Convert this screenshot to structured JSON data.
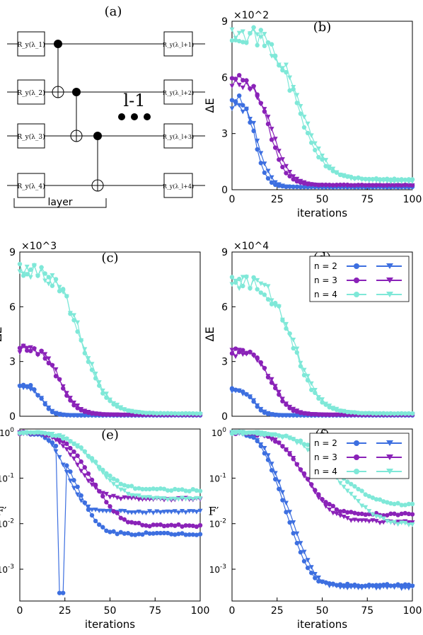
{
  "colors": {
    "n2": "#3d6fe0",
    "n3": "#8a22b8",
    "n4": "#7fe8d8",
    "band2": "#c0392b",
    "band3": "#f2b8c6",
    "band4": "#9a9a9a"
  },
  "circuit": {
    "label": "(a)",
    "gates_left": [
      "R_y(λ_1)",
      "R_y(λ_2)",
      "R_y(λ_3)",
      "R_y(λ_4)"
    ],
    "gates_right": [
      "R_y(λ_l+1)",
      "R_y(λ_l+2)",
      "R_y(λ_l+3)",
      "R_y(λ_l+4)"
    ],
    "repeat_label": "l-1",
    "layer_label": "layer"
  },
  "chart_data": [
    {
      "panel": "(b)",
      "type": "line",
      "multiplier": "×10^2",
      "ylabel": "ΔE",
      "xlabel": "iterations",
      "xlim": [
        0,
        100
      ],
      "ylim": [
        0,
        9
      ],
      "xticks": [
        0,
        25,
        50,
        75,
        100
      ],
      "yticks": [
        0,
        3,
        6,
        9
      ],
      "series": [
        {
          "name": "n = 2",
          "marker": "circle",
          "start": 5.0,
          "floor": 0.15,
          "decay": 11
        },
        {
          "name": "n = 2",
          "marker": "triangle",
          "start": 4.7,
          "floor": 0.12,
          "decay": 13
        },
        {
          "name": "n = 3",
          "marker": "circle",
          "start": 5.9,
          "floor": 0.25,
          "decay": 19
        },
        {
          "name": "n = 3",
          "marker": "triangle",
          "start": 5.7,
          "floor": 0.22,
          "decay": 21
        },
        {
          "name": "n = 4",
          "marker": "circle",
          "start": 8.5,
          "floor": 0.55,
          "decay": 34
        },
        {
          "name": "n = 4",
          "marker": "triangle",
          "start": 8.4,
          "floor": 0.45,
          "decay": 36
        }
      ]
    },
    {
      "panel": "(c)",
      "type": "line",
      "multiplier": "×10^3",
      "ylabel": "ΔE",
      "xlabel": "",
      "xlim": [
        0,
        100
      ],
      "ylim": [
        0,
        9
      ],
      "xticks": [],
      "yticks": [
        0,
        3,
        6,
        9
      ],
      "series": [
        {
          "name": "n = 2",
          "marker": "circle",
          "start": 1.8,
          "floor": 0.05,
          "decay": 10
        },
        {
          "name": "n = 2",
          "marker": "triangle",
          "start": 1.6,
          "floor": 0.05,
          "decay": 11
        },
        {
          "name": "n = 3",
          "marker": "circle",
          "start": 3.8,
          "floor": 0.08,
          "decay": 20
        },
        {
          "name": "n = 3",
          "marker": "triangle",
          "start": 3.7,
          "floor": 0.08,
          "decay": 21
        },
        {
          "name": "n = 4",
          "marker": "circle",
          "start": 8.1,
          "floor": 0.15,
          "decay": 32
        },
        {
          "name": "n = 4",
          "marker": "triangle",
          "start": 8.0,
          "floor": 0.12,
          "decay": 33
        }
      ]
    },
    {
      "panel": "(d)",
      "type": "line",
      "multiplier": "×10^4",
      "ylabel": "ΔE",
      "xlabel": "",
      "xlim": [
        0,
        100
      ],
      "ylim": [
        0,
        9
      ],
      "xticks": [],
      "yticks": [
        0,
        3,
        6,
        9
      ],
      "series": [
        {
          "name": "n = 2",
          "marker": "circle",
          "start": 1.5,
          "floor": 0.05,
          "decay": 10
        },
        {
          "name": "n = 2",
          "marker": "triangle",
          "start": 1.4,
          "floor": 0.05,
          "decay": 11
        },
        {
          "name": "n = 3",
          "marker": "circle",
          "start": 3.6,
          "floor": 0.08,
          "decay": 20
        },
        {
          "name": "n = 3",
          "marker": "triangle",
          "start": 3.5,
          "floor": 0.08,
          "decay": 21
        },
        {
          "name": "n = 4",
          "marker": "circle",
          "start": 7.6,
          "floor": 0.15,
          "decay": 32
        },
        {
          "name": "n = 4",
          "marker": "triangle",
          "start": 7.5,
          "floor": 0.12,
          "decay": 33
        }
      ],
      "legend": [
        "n = 2",
        "n = 3",
        "n = 4"
      ]
    },
    {
      "panel": "(e)",
      "type": "line",
      "ylabel": "F′",
      "xlabel": "iterations",
      "yscale": "log",
      "xlim": [
        0,
        100
      ],
      "ylim": [
        0.0002,
        1.2
      ],
      "xticks": [
        0,
        25,
        50,
        75,
        100
      ],
      "yticklabels": [
        "10^0",
        "10^-1",
        "10^-2",
        "10^-3"
      ],
      "series": [
        {
          "name": "n = 2",
          "marker": "circle",
          "start": 1.0,
          "floor": 0.006,
          "decay": 18,
          "spike_at": 23,
          "spike_val": 0.0003
        },
        {
          "name": "n = 2",
          "marker": "triangle",
          "start": 1.0,
          "floor": 0.018,
          "decay": 16
        },
        {
          "name": "n = 3",
          "marker": "circle",
          "start": 1.0,
          "floor": 0.009,
          "decay": 25
        },
        {
          "name": "n = 3",
          "marker": "triangle",
          "start": 1.0,
          "floor": 0.035,
          "decay": 22
        },
        {
          "name": "n = 4",
          "marker": "circle",
          "start": 1.0,
          "floor": 0.055,
          "decay": 30
        },
        {
          "name": "n = 4",
          "marker": "triangle",
          "start": 1.0,
          "floor": 0.035,
          "decay": 30
        }
      ]
    },
    {
      "panel": "(f)",
      "type": "line",
      "ylabel": "F′",
      "xlabel": "iterations",
      "yscale": "log",
      "xlim": [
        0,
        100
      ],
      "ylim": [
        0.0002,
        1.2
      ],
      "xticks": [
        0,
        25,
        50,
        75,
        100
      ],
      "yticklabels": [
        "10^0",
        "10^-1",
        "10^-2",
        "10^-3"
      ],
      "series": [
        {
          "name": "n = 2",
          "marker": "circle",
          "start": 1.0,
          "floor": 0.00045,
          "decay": 14
        },
        {
          "name": "n = 2",
          "marker": "triangle",
          "start": 1.0,
          "floor": 0.0004,
          "decay": 15
        },
        {
          "name": "n = 3",
          "marker": "circle",
          "start": 1.0,
          "floor": 0.016,
          "decay": 26
        },
        {
          "name": "n = 3",
          "marker": "triangle",
          "start": 1.0,
          "floor": 0.011,
          "decay": 26
        },
        {
          "name": "n = 4",
          "marker": "circle",
          "start": 1.0,
          "floor": 0.025,
          "decay": 40
        },
        {
          "name": "n = 4",
          "marker": "triangle",
          "start": 1.0,
          "floor": 0.009,
          "decay": 38
        }
      ],
      "legend": [
        "n = 2",
        "n = 3",
        "n = 4"
      ]
    }
  ]
}
